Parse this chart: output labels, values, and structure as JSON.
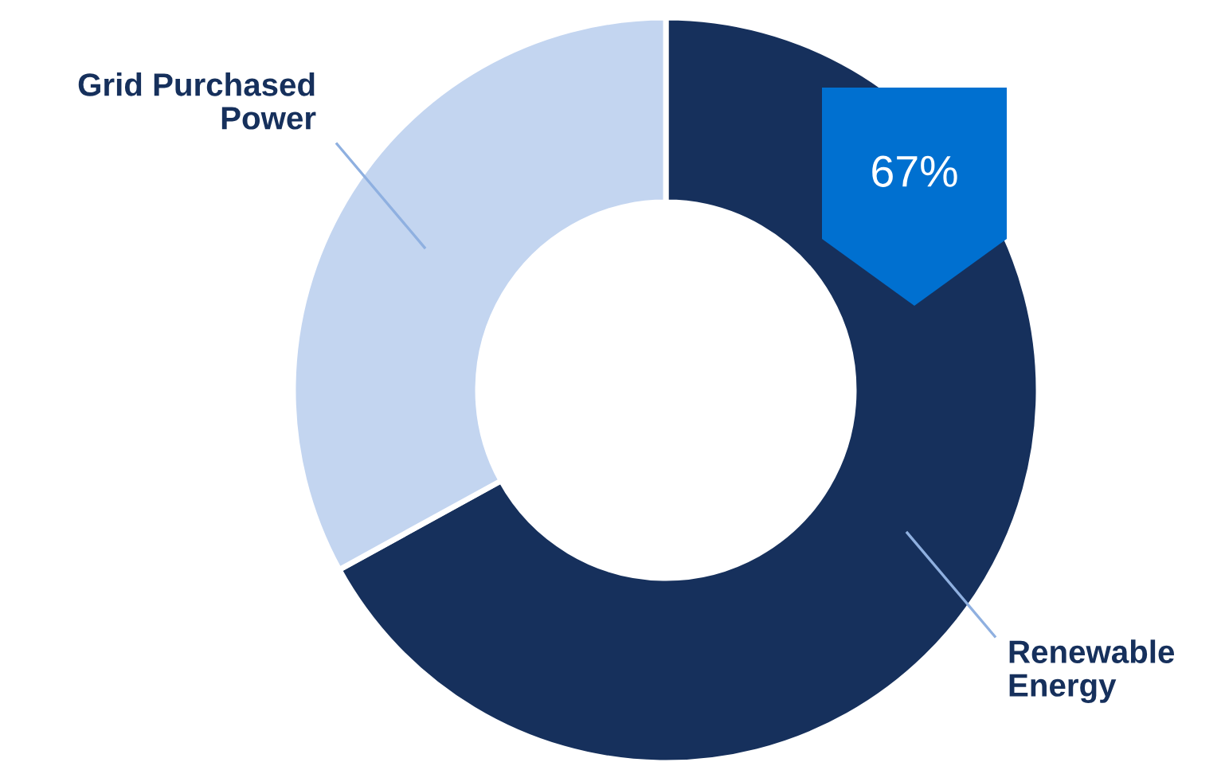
{
  "chart_data": {
    "type": "donut",
    "categories": [
      "Renewable\nEnergy",
      "Grid Purchased\nPower"
    ],
    "values": [
      67,
      33
    ],
    "colors": [
      "#16305c",
      "#c3d5f0"
    ],
    "value_labels": [
      "67%",
      null
    ],
    "legend": false
  }
}
